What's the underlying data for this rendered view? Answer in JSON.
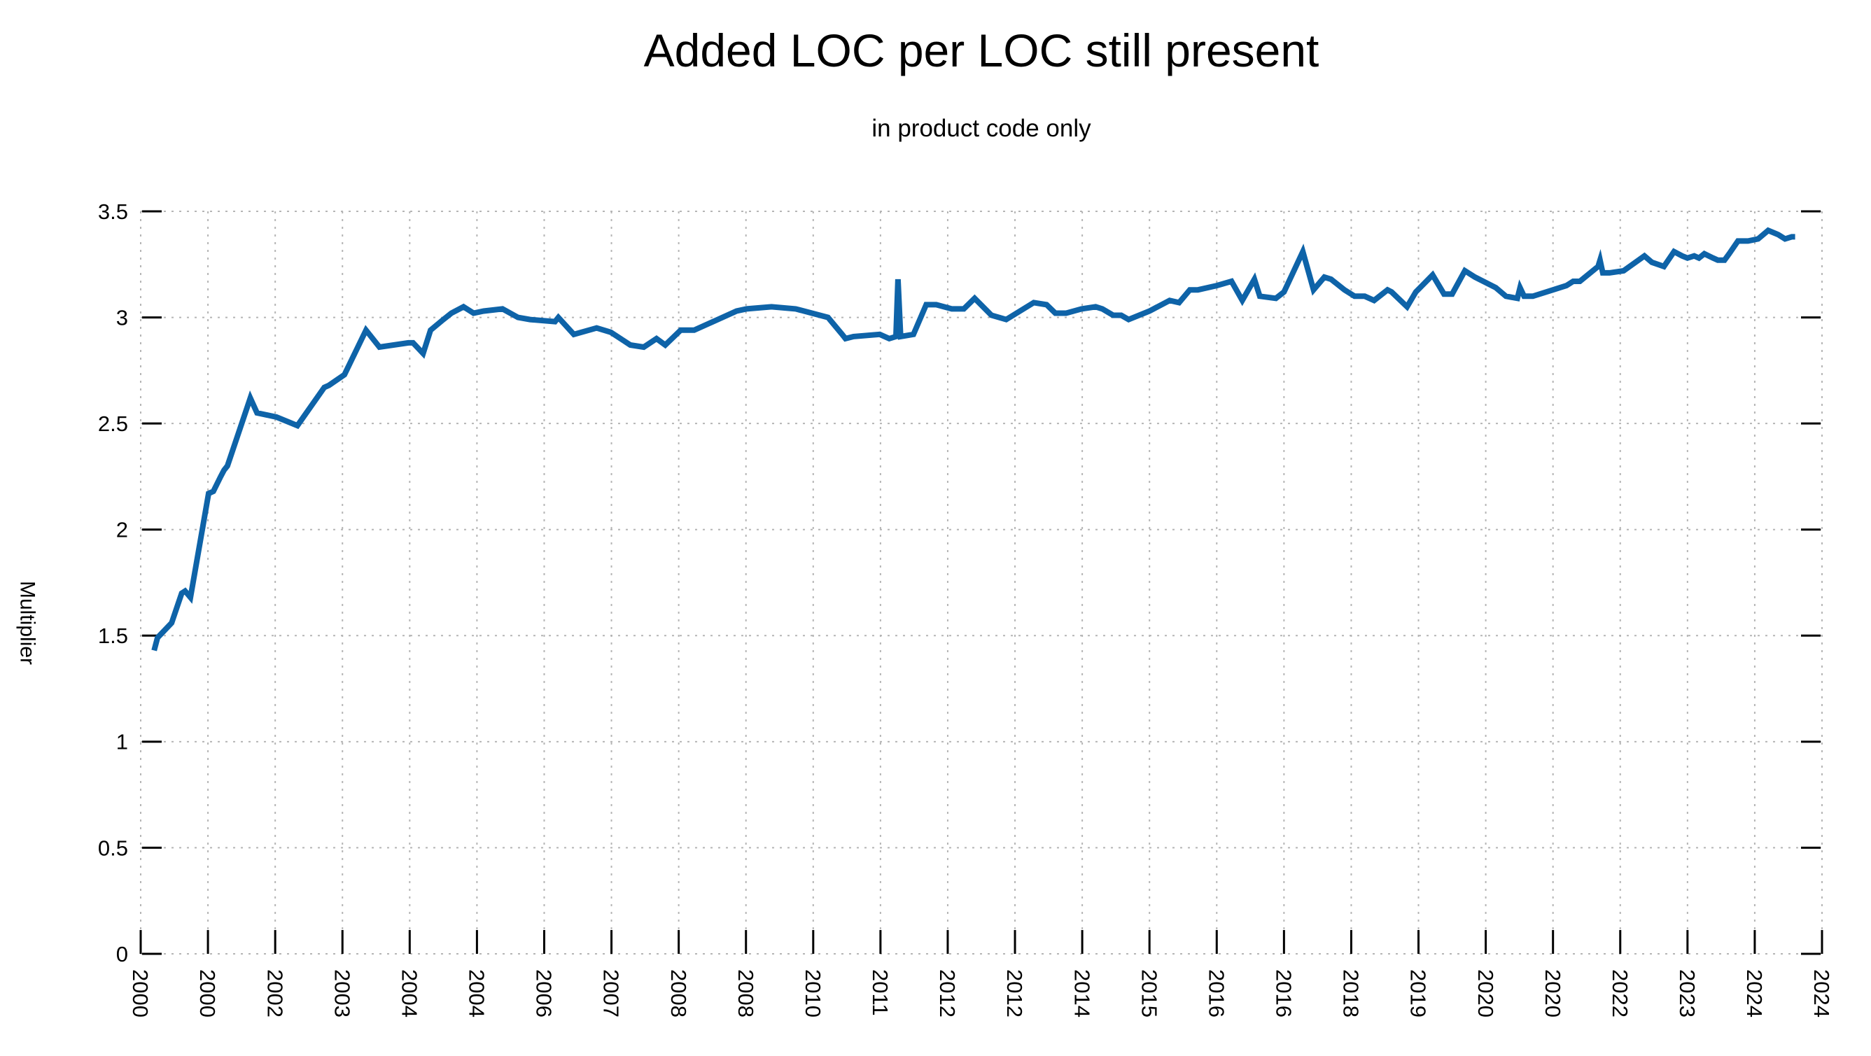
{
  "header": {
    "title": "Added LOC per LOC still present",
    "subtitle": "in product code only"
  },
  "axes": {
    "y_label": "Multiplier",
    "y_tick_labels": [
      "0",
      "0.5",
      "1",
      "1.5",
      "2",
      "2.5",
      "3",
      "3.5"
    ],
    "x_tick_labels": [
      "2000",
      "2000",
      "2002",
      "2003",
      "2004",
      "2004",
      "2006",
      "2007",
      "2008",
      "2008",
      "2010",
      "2011",
      "2012",
      "2012",
      "2014",
      "2015",
      "2016",
      "2016",
      "2018",
      "2019",
      "2020",
      "2020",
      "2022",
      "2023",
      "2024",
      "2024"
    ]
  },
  "colors": {
    "line": "#0e63a8",
    "grid": "#b5b5b5",
    "tick": "#000000",
    "text": "#000000",
    "background": "#ffffff"
  },
  "chart_data": {
    "type": "line",
    "title": "Added LOC per LOC still present",
    "subtitle": "in product code only",
    "xlabel": "",
    "ylabel": "Multiplier",
    "ylim": [
      0,
      3.5
    ],
    "y_ticks": [
      0,
      0.5,
      1,
      1.5,
      2,
      2.5,
      3,
      3.5
    ],
    "x_tick_labels": [
      "2000",
      "2000",
      "2002",
      "2003",
      "2004",
      "2004",
      "2006",
      "2007",
      "2008",
      "2008",
      "2010",
      "2011",
      "2012",
      "2012",
      "2014",
      "2015",
      "2016",
      "2016",
      "2018",
      "2019",
      "2020",
      "2020",
      "2022",
      "2023",
      "2024",
      "2024"
    ],
    "grid": true,
    "legend": "none",
    "x_units": "tick-index (0 = first tick, 25 = last tick)",
    "points": [
      [
        0.2,
        1.43
      ],
      [
        0.25,
        1.49
      ],
      [
        0.34,
        1.52
      ],
      [
        0.46,
        1.56
      ],
      [
        0.61,
        1.7
      ],
      [
        0.66,
        1.71
      ],
      [
        0.74,
        1.68
      ],
      [
        1.01,
        2.17
      ],
      [
        1.08,
        2.18
      ],
      [
        1.19,
        2.25
      ],
      [
        1.24,
        2.28
      ],
      [
        1.29,
        2.3
      ],
      [
        1.63,
        2.62
      ],
      [
        1.73,
        2.55
      ],
      [
        2.02,
        2.53
      ],
      [
        2.33,
        2.49
      ],
      [
        2.73,
        2.67
      ],
      [
        2.8,
        2.68
      ],
      [
        3.03,
        2.73
      ],
      [
        3.35,
        2.94
      ],
      [
        3.55,
        2.86
      ],
      [
        3.98,
        2.88
      ],
      [
        4.05,
        2.88
      ],
      [
        4.2,
        2.83
      ],
      [
        4.31,
        2.94
      ],
      [
        4.5,
        2.99
      ],
      [
        4.62,
        3.02
      ],
      [
        4.8,
        3.05
      ],
      [
        4.95,
        3.02
      ],
      [
        5.1,
        3.03
      ],
      [
        5.38,
        3.04
      ],
      [
        5.61,
        3.0
      ],
      [
        5.79,
        2.99
      ],
      [
        6.16,
        2.98
      ],
      [
        6.21,
        3.0
      ],
      [
        6.44,
        2.92
      ],
      [
        6.78,
        2.95
      ],
      [
        6.99,
        2.93
      ],
      [
        7.28,
        2.87
      ],
      [
        7.48,
        2.86
      ],
      [
        7.67,
        2.9
      ],
      [
        7.8,
        2.87
      ],
      [
        8.03,
        2.94
      ],
      [
        8.23,
        2.94
      ],
      [
        8.86,
        3.03
      ],
      [
        9.01,
        3.04
      ],
      [
        9.38,
        3.05
      ],
      [
        9.74,
        3.04
      ],
      [
        10.22,
        3.0
      ],
      [
        10.43,
        2.92
      ],
      [
        10.48,
        2.9
      ],
      [
        10.6,
        2.91
      ],
      [
        10.99,
        2.92
      ],
      [
        11.13,
        2.9
      ],
      [
        11.23,
        2.91
      ],
      [
        11.26,
        3.18
      ],
      [
        11.3,
        2.91
      ],
      [
        11.49,
        2.92
      ],
      [
        11.68,
        3.06
      ],
      [
        11.83,
        3.06
      ],
      [
        12.06,
        3.04
      ],
      [
        12.24,
        3.04
      ],
      [
        12.4,
        3.09
      ],
      [
        12.65,
        3.01
      ],
      [
        12.87,
        2.99
      ],
      [
        13.28,
        3.07
      ],
      [
        13.47,
        3.06
      ],
      [
        13.6,
        3.02
      ],
      [
        13.76,
        3.02
      ],
      [
        13.99,
        3.04
      ],
      [
        14.2,
        3.05
      ],
      [
        14.3,
        3.04
      ],
      [
        14.46,
        3.01
      ],
      [
        14.58,
        3.01
      ],
      [
        14.69,
        2.99
      ],
      [
        15.0,
        3.03
      ],
      [
        15.3,
        3.08
      ],
      [
        15.44,
        3.07
      ],
      [
        15.6,
        3.13
      ],
      [
        15.72,
        3.13
      ],
      [
        16.0,
        3.15
      ],
      [
        16.22,
        3.17
      ],
      [
        16.38,
        3.08
      ],
      [
        16.56,
        3.18
      ],
      [
        16.64,
        3.1
      ],
      [
        16.88,
        3.09
      ],
      [
        17.0,
        3.12
      ],
      [
        17.28,
        3.31
      ],
      [
        17.44,
        3.13
      ],
      [
        17.6,
        3.19
      ],
      [
        17.7,
        3.18
      ],
      [
        17.9,
        3.13
      ],
      [
        18.05,
        3.1
      ],
      [
        18.2,
        3.1
      ],
      [
        18.34,
        3.08
      ],
      [
        18.54,
        3.13
      ],
      [
        18.6,
        3.12
      ],
      [
        18.83,
        3.05
      ],
      [
        18.96,
        3.12
      ],
      [
        19.21,
        3.2
      ],
      [
        19.38,
        3.11
      ],
      [
        19.5,
        3.11
      ],
      [
        19.69,
        3.22
      ],
      [
        19.84,
        3.19
      ],
      [
        20.15,
        3.14
      ],
      [
        20.3,
        3.1
      ],
      [
        20.47,
        3.09
      ],
      [
        20.51,
        3.14
      ],
      [
        20.57,
        3.1
      ],
      [
        20.7,
        3.1
      ],
      [
        21.0,
        3.13
      ],
      [
        21.2,
        3.15
      ],
      [
        21.3,
        3.17
      ],
      [
        21.4,
        3.17
      ],
      [
        21.67,
        3.24
      ],
      [
        21.7,
        3.27
      ],
      [
        21.74,
        3.21
      ],
      [
        21.84,
        3.21
      ],
      [
        22.05,
        3.22
      ],
      [
        22.36,
        3.29
      ],
      [
        22.47,
        3.26
      ],
      [
        22.65,
        3.24
      ],
      [
        22.8,
        3.31
      ],
      [
        22.92,
        3.29
      ],
      [
        23.0,
        3.28
      ],
      [
        23.1,
        3.29
      ],
      [
        23.17,
        3.28
      ],
      [
        23.25,
        3.3
      ],
      [
        23.38,
        3.28
      ],
      [
        23.45,
        3.27
      ],
      [
        23.55,
        3.27
      ],
      [
        23.62,
        3.3
      ],
      [
        23.75,
        3.36
      ],
      [
        23.9,
        3.36
      ],
      [
        24.05,
        3.37
      ],
      [
        24.2,
        3.41
      ],
      [
        24.35,
        3.39
      ],
      [
        24.45,
        3.37
      ],
      [
        24.55,
        3.38
      ],
      [
        24.6,
        3.38
      ]
    ]
  }
}
